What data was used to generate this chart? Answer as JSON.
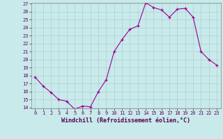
{
  "hours": [
    0,
    1,
    2,
    3,
    4,
    5,
    6,
    7,
    8,
    9,
    10,
    11,
    12,
    13,
    14,
    15,
    16,
    17,
    18,
    19,
    20,
    21,
    22,
    23
  ],
  "values": [
    17.8,
    16.7,
    15.9,
    15.0,
    14.8,
    13.8,
    14.2,
    14.1,
    16.0,
    17.5,
    21.0,
    22.5,
    23.8,
    24.2,
    27.1,
    26.5,
    26.2,
    25.3,
    26.3,
    26.4,
    25.3,
    21.0,
    20.0,
    19.3
  ],
  "line_color": "#990099",
  "marker": "+",
  "bg_color": "#c8eaea",
  "grid_color": "#b0d0d0",
  "xlabel": "Windchill (Refroidissement éolien,°C)",
  "ylim": [
    14,
    27
  ],
  "xlim": [
    -0.5,
    23.5
  ],
  "yticks": [
    14,
    15,
    16,
    17,
    18,
    19,
    20,
    21,
    22,
    23,
    24,
    25,
    26,
    27
  ],
  "xticks": [
    0,
    1,
    2,
    3,
    4,
    5,
    6,
    7,
    8,
    9,
    10,
    11,
    12,
    13,
    14,
    15,
    16,
    17,
    18,
    19,
    20,
    21,
    22,
    23
  ],
  "tick_fontsize": 5.0,
  "xlabel_fontsize": 6.0
}
